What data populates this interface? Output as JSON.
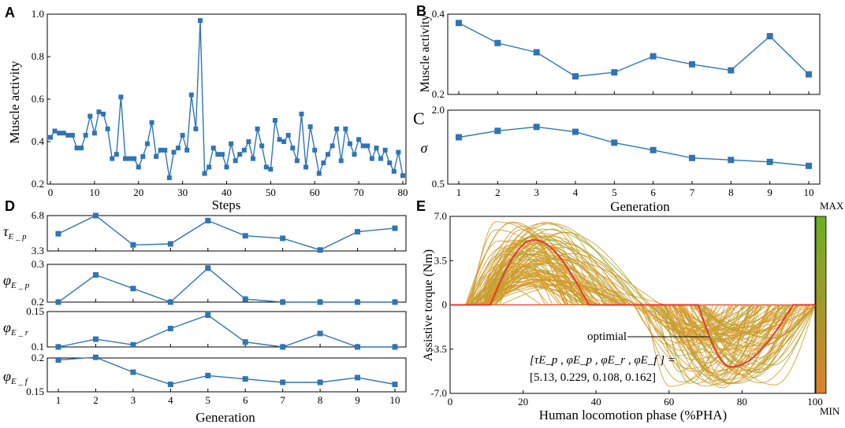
{
  "chart_data": [
    {
      "id": "A",
      "panel_label": "A",
      "type": "line",
      "xlabel": "Steps",
      "ylabel": "Muscle activity",
      "xlim": [
        0,
        80
      ],
      "ylim": [
        0.2,
        1.0
      ],
      "xticks": [
        0,
        10,
        20,
        30,
        40,
        50,
        60,
        70,
        80
      ],
      "xtick_labels": [
        "0",
        "10",
        "20",
        "30",
        "40",
        "50",
        "60",
        "70",
        "80"
      ],
      "yticks": [
        0.2,
        0.4,
        0.6,
        0.8,
        1.0
      ],
      "ytick_labels": [
        "0.2",
        "0.4",
        "0.6",
        "0.8",
        "1.0"
      ],
      "x": [
        0,
        1,
        2,
        3,
        4,
        5,
        6,
        7,
        8,
        9,
        10,
        11,
        12,
        13,
        14,
        15,
        16,
        17,
        18,
        19,
        20,
        21,
        22,
        23,
        24,
        25,
        26,
        27,
        28,
        29,
        30,
        31,
        32,
        33,
        34,
        35,
        36,
        37,
        38,
        39,
        40,
        41,
        42,
        43,
        44,
        45,
        46,
        47,
        48,
        49,
        50,
        51,
        52,
        53,
        54,
        55,
        56,
        57,
        58,
        59,
        60,
        61,
        62,
        63,
        64,
        65,
        66,
        67,
        68,
        69,
        70,
        71,
        72,
        73,
        74,
        75,
        76,
        77,
        78,
        79,
        80
      ],
      "values": [
        0.42,
        0.45,
        0.44,
        0.44,
        0.43,
        0.43,
        0.37,
        0.37,
        0.43,
        0.52,
        0.44,
        0.54,
        0.53,
        0.46,
        0.32,
        0.34,
        0.61,
        0.32,
        0.32,
        0.32,
        0.28,
        0.33,
        0.39,
        0.49,
        0.33,
        0.36,
        0.36,
        0.23,
        0.35,
        0.37,
        0.43,
        0.36,
        0.62,
        0.46,
        0.97,
        0.25,
        0.28,
        0.37,
        0.34,
        0.34,
        0.28,
        0.39,
        0.31,
        0.34,
        0.36,
        0.4,
        0.32,
        0.46,
        0.38,
        0.28,
        0.27,
        0.5,
        0.41,
        0.4,
        0.43,
        0.37,
        0.31,
        0.53,
        0.28,
        0.47,
        0.36,
        0.25,
        0.3,
        0.34,
        0.38,
        0.46,
        0.31,
        0.46,
        0.39,
        0.34,
        0.41,
        0.38,
        0.38,
        0.32,
        0.37,
        0.32,
        0.36,
        0.3,
        0.26,
        0.35,
        0.24
      ]
    },
    {
      "id": "B",
      "panel_label": "B",
      "type": "line",
      "ylabel": "Muscle activity",
      "xlim": [
        1,
        10
      ],
      "ylim": [
        0.2,
        0.4
      ],
      "yticks": [
        0.2,
        0.4
      ],
      "ytick_labels": [
        "0.2",
        "0.4"
      ],
      "x": [
        1,
        2,
        3,
        4,
        5,
        6,
        7,
        8,
        9,
        10
      ],
      "values": [
        0.378,
        0.328,
        0.305,
        0.245,
        0.255,
        0.295,
        0.275,
        0.26,
        0.345,
        0.25
      ]
    },
    {
      "id": "C",
      "panel_label": "C",
      "type": "line",
      "xlabel": "Generation",
      "ylabel": "σ",
      "xlim": [
        1,
        10
      ],
      "ylim": [
        0.5,
        2.0
      ],
      "xticks": [
        1,
        2,
        3,
        4,
        5,
        6,
        7,
        8,
        9,
        10
      ],
      "xtick_labels": [
        "1",
        "2",
        "3",
        "4",
        "5",
        "6",
        "7",
        "8",
        "9",
        "10"
      ],
      "yticks": [
        0.5,
        2.0
      ],
      "ytick_labels": [
        "0.5",
        "2.0"
      ],
      "x": [
        1,
        2,
        3,
        4,
        5,
        6,
        7,
        8,
        9,
        10
      ],
      "values": [
        1.45,
        1.58,
        1.66,
        1.56,
        1.34,
        1.19,
        1.03,
        0.99,
        0.95,
        0.87
      ]
    },
    {
      "id": "D1",
      "panel_label": "D",
      "type": "line",
      "ylabel": "τE_p",
      "ylabel_main": "τ",
      "ylabel_sub": "E _ p",
      "xlim": [
        1,
        10
      ],
      "ylim": [
        3.3,
        6.8
      ],
      "yticks": [
        3.3,
        6.8
      ],
      "ytick_labels": [
        "3.3",
        "6.8"
      ],
      "x": [
        1,
        2,
        3,
        4,
        5,
        6,
        7,
        8,
        9,
        10
      ],
      "values": [
        5.0,
        6.8,
        3.9,
        4.0,
        6.3,
        4.8,
        4.55,
        3.4,
        5.2,
        5.55
      ]
    },
    {
      "id": "D2",
      "type": "line",
      "ylabel": "φE_p",
      "ylabel_main": "φ",
      "ylabel_sub": "E _ p",
      "xlim": [
        1,
        10
      ],
      "ylim": [
        0.2,
        0.3
      ],
      "yticks": [
        0.2,
        0.3
      ],
      "ytick_labels": [
        "0.2",
        "0.3"
      ],
      "x": [
        1,
        2,
        3,
        4,
        5,
        6,
        7,
        8,
        9,
        10
      ],
      "values": [
        0.2,
        0.272,
        0.236,
        0.2,
        0.29,
        0.208,
        0.2,
        0.2,
        0.2,
        0.2
      ]
    },
    {
      "id": "D3",
      "type": "line",
      "ylabel": "φE_r",
      "ylabel_main": "φ",
      "ylabel_sub": "E _ r",
      "xlim": [
        1,
        10
      ],
      "ylim": [
        0.1,
        0.15
      ],
      "yticks": [
        0.1,
        0.15
      ],
      "ytick_labels": [
        "0.1",
        "0.15"
      ],
      "x": [
        1,
        2,
        3,
        4,
        5,
        6,
        7,
        8,
        9,
        10
      ],
      "values": [
        0.1,
        0.111,
        0.103,
        0.126,
        0.145,
        0.107,
        0.1,
        0.119,
        0.1,
        0.1
      ]
    },
    {
      "id": "D4",
      "type": "line",
      "xlabel": "Generation",
      "ylabel": "φE_f",
      "ylabel_main": "φ",
      "ylabel_sub": "E _ f",
      "xlim": [
        1,
        10
      ],
      "ylim": [
        0.15,
        0.2
      ],
      "xticks": [
        1,
        2,
        3,
        4,
        5,
        6,
        7,
        8,
        9,
        10
      ],
      "xtick_labels": [
        "1",
        "2",
        "3",
        "4",
        "5",
        "6",
        "7",
        "8",
        "9",
        "10"
      ],
      "yticks": [
        0.15,
        0.2
      ],
      "ytick_labels": [
        "0.15",
        "0.2"
      ],
      "x": [
        1,
        2,
        3,
        4,
        5,
        6,
        7,
        8,
        9,
        10
      ],
      "values": [
        0.197,
        0.201,
        0.179,
        0.161,
        0.174,
        0.169,
        0.164,
        0.164,
        0.171,
        0.161
      ]
    },
    {
      "id": "E",
      "panel_label": "E",
      "type": "line",
      "xlabel": "Human locomotion phase (%PHA)",
      "ylabel": "Assistive torque (Nm)",
      "xlim": [
        0,
        100
      ],
      "ylim": [
        -7.0,
        7.0
      ],
      "xticks": [
        0,
        20,
        40,
        60,
        80,
        100
      ],
      "xtick_labels": [
        "0",
        "20",
        "40",
        "60",
        "80",
        "100"
      ],
      "yticks": [
        -7.0,
        -3.5,
        0,
        3.5,
        7.0
      ],
      "ytick_labels": [
        "-7.0",
        "-3.5",
        "0",
        "3.5",
        "7.0"
      ],
      "colorbar": {
        "max_label": "MAX",
        "min_label": "MIN",
        "top_color": "#6ab023",
        "bottom_color": "#d9822b"
      },
      "optimal_label": "optimial",
      "optimal_params_line1": "[τE_p , φE_p , φE_r , φE_f ] =",
      "optimal_params_line2": "[5.13, 0.229, 0.108, 0.162]",
      "optimal": {
        "flex_start": 11,
        "flex_peak": 22.9,
        "flex_end": 38,
        "flex_amp": 5.13,
        "ext_start": 68,
        "ext_peak": 77,
        "ext_end": 94,
        "ext_amp": 4.9
      },
      "optimal_color": "#e8382e",
      "candidate_color": "#d49a2a",
      "candidate_color_alt": "#8fb03a",
      "candidate_count": 100
    }
  ]
}
